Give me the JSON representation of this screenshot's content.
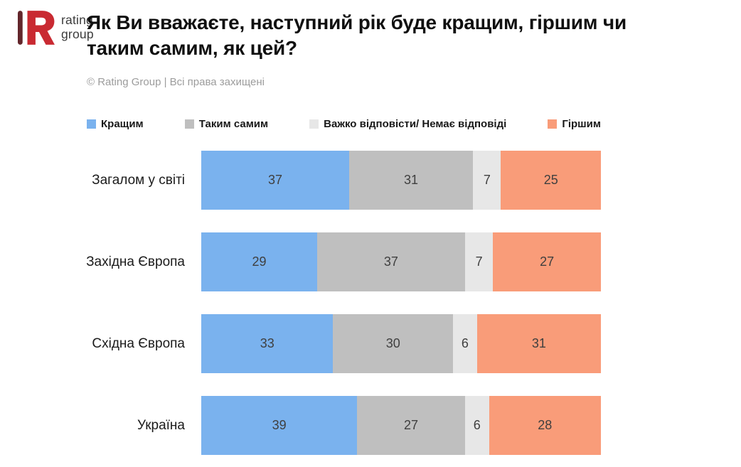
{
  "logo": {
    "line1": "rating",
    "line2": "group",
    "mark_red": "#C92A32",
    "mark_dark": "#63262B"
  },
  "header": {
    "title": "Як Ви вважаєте, наступний рік буде кращим, гіршим чи таким самим, як цей?",
    "copyright": "© Rating Group | Всі права захищені"
  },
  "colors": {
    "background": "#FFFFFF",
    "title_text": "#101010",
    "muted_text": "#9C9C9C",
    "value_text": "#3F3F3F"
  },
  "chart_data": {
    "type": "bar",
    "orientation": "horizontal",
    "stacked": true,
    "unit": "percent",
    "title": "Як Ви вважаєте, наступний рік буде кращим, гіршим чи таким самим, як цей?",
    "legend_position": "top",
    "data_labels": true,
    "xlim": [
      0,
      100
    ],
    "categories": [
      "Загалом у світі",
      "Західна Європа",
      "Східна Європа",
      "Україна"
    ],
    "series": [
      {
        "name": "Кращим",
        "color": "#7AB2EE",
        "values": [
          37,
          29,
          33,
          39
        ]
      },
      {
        "name": "Таким самим",
        "color": "#BFBFBF",
        "values": [
          31,
          37,
          30,
          27
        ]
      },
      {
        "name": "Важко відповісти/ Немає відповіді",
        "color": "#E7E7E7",
        "values": [
          7,
          7,
          6,
          6
        ]
      },
      {
        "name": "Гіршим",
        "color": "#F99C79",
        "values": [
          25,
          27,
          31,
          28
        ]
      }
    ]
  }
}
